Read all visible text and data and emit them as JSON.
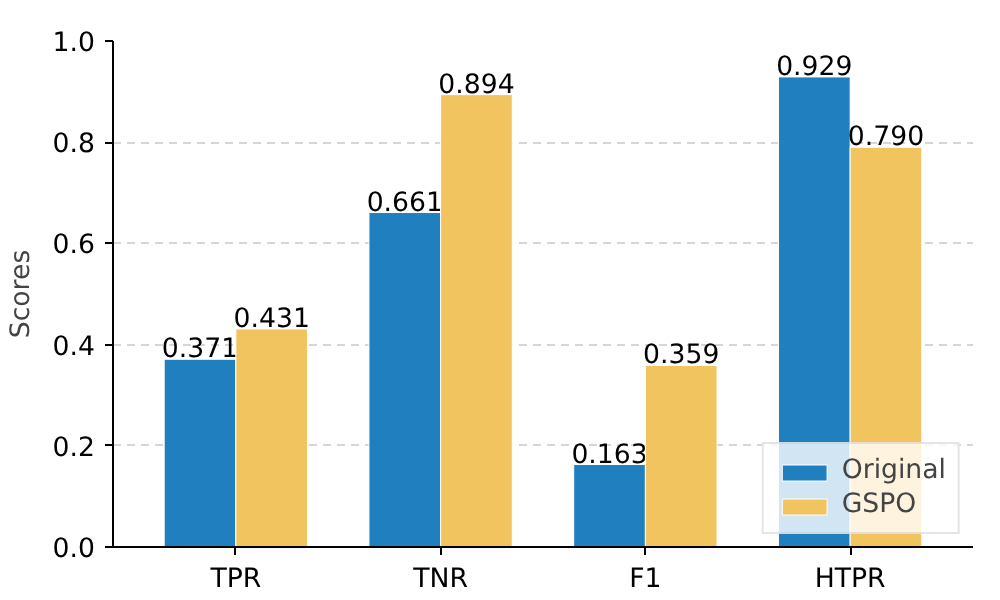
{
  "chart_data": {
    "type": "bar",
    "ylabel": "Scores",
    "categories": [
      "TPR",
      "TNR",
      "F1",
      "HTPR"
    ],
    "series": [
      {
        "name": "Original",
        "color": "#1f7fbf",
        "values": [
          0.371,
          0.661,
          0.163,
          0.929
        ],
        "value_labels": [
          "0.371",
          "0.661",
          "0.163",
          "0.929"
        ]
      },
      {
        "name": "GSPO",
        "color": "#f2c45f",
        "values": [
          0.431,
          0.894,
          0.359,
          0.79
        ],
        "value_labels": [
          "0.431",
          "0.894",
          "0.359",
          "0.790"
        ]
      }
    ],
    "ylim": [
      0,
      1.0
    ],
    "yticks": [
      {
        "value": 0,
        "label": "0.0"
      },
      {
        "value": 0.2,
        "label": "0.2"
      },
      {
        "value": 0.4,
        "label": "0.4"
      },
      {
        "value": 0.6,
        "label": "0.6"
      },
      {
        "value": 0.8,
        "label": "0.8"
      },
      {
        "value": 1.0,
        "label": "1.0"
      }
    ],
    "grid": "y",
    "legend": "bottom right"
  }
}
